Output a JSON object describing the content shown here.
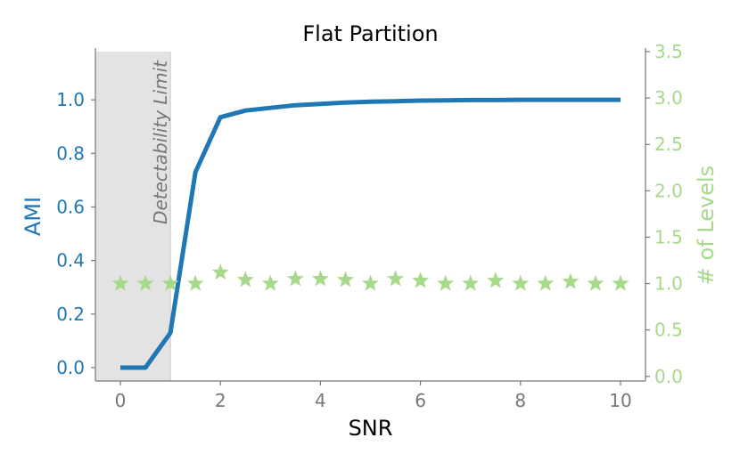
{
  "chart_data": {
    "type": "line",
    "title": "Flat Partition",
    "xlabel": "SNR",
    "ylabel_left": "AMI",
    "ylabel_right": "# of Levels",
    "xlim": [
      -0.5,
      10.5
    ],
    "ylim_left": [
      -0.05,
      1.18
    ],
    "ylim_right": [
      -0.05,
      3.5
    ],
    "x_ticks": [
      0,
      2,
      4,
      6,
      8,
      10
    ],
    "y_left_ticks": [
      "0.0",
      "0.2",
      "0.4",
      "0.6",
      "0.8",
      "1.0"
    ],
    "y_right_ticks": [
      "0.0",
      "0.5",
      "1.0",
      "1.5",
      "2.0",
      "2.5",
      "3.0",
      "3.5"
    ],
    "grid": false,
    "shaded_region": {
      "x_from": -0.5,
      "x_to": 1.0,
      "label": "Detectability Limit"
    },
    "colors": {
      "ami": "#1f77b4",
      "levels": "#a6d98a",
      "axes": "#777777",
      "shade": "#e3e3e3"
    },
    "series": [
      {
        "axis": "left",
        "mark": "line",
        "x": [
          0,
          0.5,
          1.0,
          1.5,
          2.0,
          2.5,
          3.0,
          3.5,
          4.0,
          4.5,
          5.0,
          5.5,
          6.0,
          6.5,
          7.0,
          7.5,
          8.0,
          8.5,
          9.0,
          9.5,
          10.0
        ],
        "values": [
          0.0,
          0.0,
          0.13,
          0.73,
          0.935,
          0.96,
          0.97,
          0.98,
          0.985,
          0.99,
          0.993,
          0.995,
          0.997,
          0.998,
          0.999,
          0.999,
          1.0,
          1.0,
          1.0,
          1.0,
          1.0
        ]
      },
      {
        "axis": "right",
        "mark": "star",
        "x": [
          0,
          0.5,
          1.0,
          1.5,
          2.0,
          2.5,
          3.0,
          3.5,
          4.0,
          4.5,
          5.0,
          5.5,
          6.0,
          6.5,
          7.0,
          7.5,
          8.0,
          8.5,
          9.0,
          9.5,
          10.0
        ],
        "values": [
          1.0,
          1.0,
          1.0,
          1.0,
          1.12,
          1.04,
          1.0,
          1.05,
          1.05,
          1.04,
          1.0,
          1.05,
          1.03,
          1.0,
          1.0,
          1.03,
          1.0,
          1.0,
          1.02,
          1.0,
          1.0
        ]
      }
    ]
  }
}
